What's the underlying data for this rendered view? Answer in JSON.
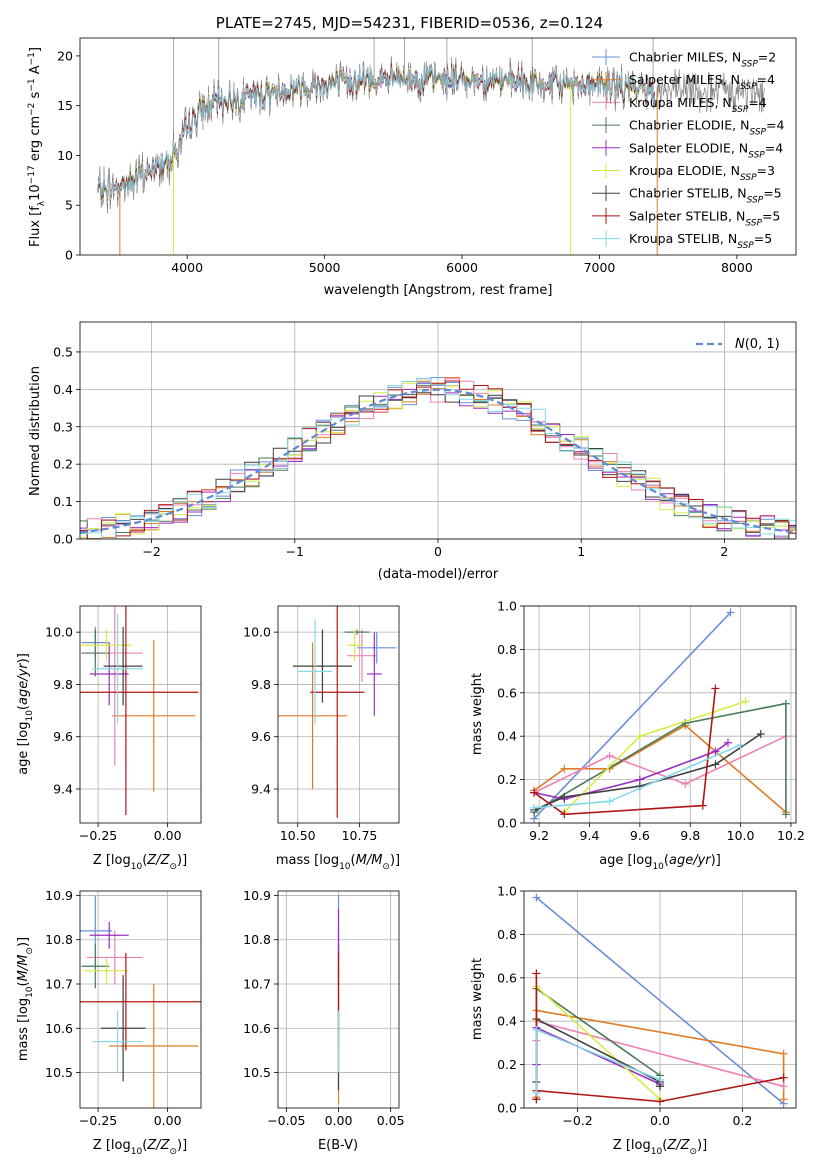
{
  "series_styles": {
    "Chabrier MILES": {
      "color": "#6a8fd8"
    },
    "Salpeter MILES": {
      "color": "#e07b25"
    },
    "Kroupa MILES": {
      "color": "#ee82b4"
    },
    "Chabrier ELODIE": {
      "color": "#4a7a5a"
    },
    "Salpeter ELODIE": {
      "color": "#9a2ec2"
    },
    "Kroupa ELODIE": {
      "color": "#d7ea47"
    },
    "Chabrier STELIB": {
      "color": "#404040"
    },
    "Salpeter STELIB": {
      "color": "#b01616"
    },
    "Kroupa STELIB": {
      "color": "#86d8e6"
    }
  },
  "chart_data": [
    {
      "id": "spectrum",
      "type": "line",
      "title": "PLATE=2745, MJD=54231, FIBERID=0536, z=0.124",
      "xlabel": "wavelength [Angstrom, rest frame]",
      "ylabel": "Flux [f_λ 10^-17 erg cm^-2 s^-1 A^-1]",
      "xlim": [
        3220,
        8430
      ],
      "ylim": [
        0,
        21.8
      ],
      "xticks": [
        4000,
        5000,
        6000,
        7000,
        8000
      ],
      "yticks": [
        0,
        5,
        10,
        15,
        20
      ],
      "grid": false,
      "legend_position": "right",
      "legend": [
        "Chabrier MILES, N_SSP=2",
        "Salpeter MILES, N_SSP=4",
        "Kroupa MILES, N_SSP=4",
        "Chabrier ELODIE, N_SSP=4",
        "Salpeter ELODIE, N_SSP=4",
        "Kroupa ELODIE, N_SSP=3",
        "Chabrier STELIB, N_SSP=5",
        "Salpeter STELIB, N_SSP=5",
        "Kroupa STELIB, N_SSP=5"
      ],
      "data_continuum": {
        "x": [
          3350,
          3500,
          3650,
          3800,
          3950,
          4000,
          4100,
          4200,
          4400,
          4600,
          4800,
          5000,
          5200,
          5400,
          5600,
          5800,
          6000,
          6200,
          6400,
          6600,
          6800,
          7000,
          7200,
          7400,
          7600,
          7800,
          8000,
          8200
        ],
        "y": [
          6.5,
          6.8,
          7.8,
          9.0,
          10.8,
          12.8,
          14.5,
          15.3,
          15.8,
          16.3,
          16.8,
          17.2,
          17.5,
          17.6,
          17.7,
          17.6,
          17.7,
          17.6,
          17.3,
          17.0,
          17.2,
          17.1,
          16.8,
          16.6,
          16.5,
          16.5,
          16.3,
          16.2
        ]
      },
      "observed_range": [
        3350,
        8200
      ],
      "model_range": [
        3350,
        7400
      ],
      "dropouts": [
        {
          "x": 3510,
          "series": "Salpeter MILES"
        },
        {
          "x": 3900,
          "series": "Kroupa ELODIE"
        },
        {
          "x": 6790,
          "series": "Kroupa ELODIE"
        },
        {
          "x": 7420,
          "series": "Salpeter MILES"
        }
      ],
      "spikes": [
        3900,
        4230,
        5360,
        5580,
        5890,
        6510,
        7390
      ]
    },
    {
      "id": "residuals",
      "type": "step",
      "xlabel": "(data-model)/error",
      "ylabel": "Normed distribution",
      "xlim": [
        -2.5,
        2.5
      ],
      "ylim": [
        0,
        0.58
      ],
      "xticks": [
        -2,
        -1,
        0,
        1,
        2
      ],
      "yticks": [
        0.0,
        0.1,
        0.2,
        0.3,
        0.4,
        0.5
      ],
      "grid": true,
      "legend_position": "upper right",
      "gaussian_label": "N(0,1)",
      "bin_width": 0.1
    },
    {
      "id": "z_age",
      "type": "errorbar",
      "xlabel": "Z [log10(Z/Z☉)]",
      "ylabel": "age [log10(age/yr)]",
      "xlim": [
        -0.315,
        0.12
      ],
      "ylim": [
        9.27,
        10.1
      ],
      "xticks": [
        -0.25,
        0.0
      ],
      "yticks": [
        9.4,
        9.6,
        9.8,
        10.0
      ],
      "grid": true,
      "points": [
        {
          "series": "Chabrier MILES",
          "x": -0.26,
          "xerr": 0.05,
          "y": 9.96,
          "yerr": 0.06
        },
        {
          "series": "Salpeter MILES",
          "x": -0.05,
          "xerr": 0.15,
          "y": 9.68,
          "yerr": 0.29
        },
        {
          "series": "Kroupa MILES",
          "x": -0.19,
          "xerr": 0.1,
          "y": 9.92,
          "yerr": 0.43
        },
        {
          "series": "Chabrier ELODIE",
          "x": -0.26,
          "xerr": 0.05,
          "y": 9.92,
          "yerr": 0.09
        },
        {
          "series": "Salpeter ELODIE",
          "x": -0.21,
          "xerr": 0.07,
          "y": 9.84,
          "yerr": 0.12
        },
        {
          "series": "Kroupa ELODIE",
          "x": -0.22,
          "xerr": 0.09,
          "y": 9.95,
          "yerr": 0.06
        },
        {
          "series": "Chabrier STELIB",
          "x": -0.16,
          "xerr": 0.07,
          "y": 9.87,
          "yerr": 0.15
        },
        {
          "series": "Salpeter STELIB",
          "x": -0.15,
          "xerr": 0.26,
          "y": 9.77,
          "yerr": 0.47
        },
        {
          "series": "Kroupa STELIB",
          "x": -0.18,
          "xerr": 0.09,
          "y": 9.86,
          "yerr": 0.21
        }
      ]
    },
    {
      "id": "mass_age",
      "type": "errorbar",
      "xlabel": "mass [log10(M/M☉)]",
      "ylabel": "",
      "xlim": [
        10.42,
        10.91
      ],
      "ylim": [
        9.27,
        10.1
      ],
      "xticks": [
        10.5,
        10.75
      ],
      "yticks": [
        9.4,
        9.6,
        9.8,
        10.0
      ],
      "grid": true,
      "points": [
        {
          "series": "Chabrier MILES",
          "x": 10.82,
          "xerr": 0.08,
          "y": 9.94,
          "yerr": 0.06
        },
        {
          "series": "Salpeter MILES",
          "x": 10.56,
          "xerr": 0.14,
          "y": 9.68,
          "yerr": 0.28
        },
        {
          "series": "Kroupa MILES",
          "x": 10.76,
          "xerr": 0.06,
          "y": 9.91,
          "yerr": 0.1
        },
        {
          "series": "Chabrier ELODIE",
          "x": 10.74,
          "xerr": 0.05,
          "y": 10.0,
          "yerr": 0.01
        },
        {
          "series": "Salpeter ELODIE",
          "x": 10.81,
          "xerr": 0.03,
          "y": 9.84,
          "yerr": 0.16
        },
        {
          "series": "Kroupa ELODIE",
          "x": 10.73,
          "xerr": 0.03,
          "y": 9.95,
          "yerr": 0.06
        },
        {
          "series": "Chabrier STELIB",
          "x": 10.6,
          "xerr": 0.12,
          "y": 9.87,
          "yerr": 0.14
        },
        {
          "series": "Salpeter STELIB",
          "x": 10.66,
          "xerr": 0.11,
          "y": 9.77,
          "yerr": 0.48
        },
        {
          "series": "Kroupa STELIB",
          "x": 10.57,
          "xerr": 0.07,
          "y": 9.85,
          "yerr": 0.2
        }
      ]
    },
    {
      "id": "age_weight",
      "type": "line",
      "xlabel": "age [log10(age/yr)]",
      "ylabel": "mass weight",
      "xlim": [
        9.14,
        10.22
      ],
      "ylim": [
        0,
        1.0
      ],
      "xticks": [
        9.2,
        9.4,
        9.6,
        9.8,
        10.0,
        10.2
      ],
      "yticks": [
        0.0,
        0.2,
        0.4,
        0.6,
        0.8,
        1.0
      ],
      "grid": true,
      "series": [
        {
          "name": "Chabrier MILES",
          "x": [
            9.18,
            9.96
          ],
          "y": [
            0.02,
            0.97
          ]
        },
        {
          "name": "Salpeter MILES",
          "x": [
            9.18,
            9.3,
            9.48,
            9.78,
            10.18
          ],
          "y": [
            0.15,
            0.25,
            0.25,
            0.45,
            0.05
          ]
        },
        {
          "name": "Kroupa MILES",
          "x": [
            9.18,
            9.48,
            9.78,
            10.18
          ],
          "y": [
            0.14,
            0.31,
            0.18,
            0.4
          ]
        },
        {
          "name": "Chabrier ELODIE",
          "x": [
            9.18,
            9.78,
            10.18,
            10.18
          ],
          "y": [
            0.05,
            0.46,
            0.55,
            0.04
          ]
        },
        {
          "name": "Salpeter ELODIE",
          "x": [
            9.18,
            9.3,
            9.6,
            9.9,
            9.95
          ],
          "y": [
            0.14,
            0.11,
            0.2,
            0.33,
            0.37
          ]
        },
        {
          "name": "Kroupa ELODIE",
          "x": [
            9.3,
            9.6,
            10.02
          ],
          "y": [
            0.05,
            0.4,
            0.56
          ]
        },
        {
          "name": "Chabrier STELIB",
          "x": [
            9.18,
            9.3,
            9.6,
            9.9,
            10.08
          ],
          "y": [
            0.06,
            0.12,
            0.17,
            0.27,
            0.41
          ]
        },
        {
          "name": "Salpeter STELIB",
          "x": [
            9.18,
            9.3,
            9.85,
            9.9
          ],
          "y": [
            0.14,
            0.04,
            0.08,
            0.62
          ]
        },
        {
          "name": "Kroupa STELIB",
          "x": [
            9.18,
            9.48,
            10.0
          ],
          "y": [
            0.07,
            0.1,
            0.36
          ]
        }
      ]
    },
    {
      "id": "z_mass",
      "type": "errorbar",
      "xlabel": "Z [log10(Z/Z☉)]",
      "ylabel": "mass [log10(M/M☉)]",
      "xlim": [
        -0.315,
        0.12
      ],
      "ylim": [
        10.42,
        10.91
      ],
      "xticks": [
        -0.25,
        0.0
      ],
      "yticks": [
        10.5,
        10.6,
        10.7,
        10.8,
        10.9
      ],
      "grid": true,
      "points": [
        {
          "series": "Chabrier MILES",
          "x": -0.26,
          "xerr": 0.06,
          "y": 10.82,
          "yerr": 0.08
        },
        {
          "series": "Salpeter MILES",
          "x": -0.05,
          "xerr": 0.16,
          "y": 10.56,
          "yerr": 0.14
        },
        {
          "series": "Kroupa MILES",
          "x": -0.19,
          "xerr": 0.1,
          "y": 10.76,
          "yerr": 0.06
        },
        {
          "series": "Chabrier ELODIE",
          "x": -0.26,
          "xerr": 0.05,
          "y": 10.74,
          "yerr": 0.05
        },
        {
          "series": "Salpeter ELODIE",
          "x": -0.21,
          "xerr": 0.07,
          "y": 10.81,
          "yerr": 0.03
        },
        {
          "series": "Kroupa ELODIE",
          "x": -0.22,
          "xerr": 0.08,
          "y": 10.73,
          "yerr": 0.03
        },
        {
          "series": "Chabrier STELIB",
          "x": -0.16,
          "xerr": 0.08,
          "y": 10.6,
          "yerr": 0.12
        },
        {
          "series": "Salpeter STELIB",
          "x": -0.15,
          "xerr": 0.27,
          "y": 10.66,
          "yerr": 0.11
        },
        {
          "series": "Kroupa STELIB",
          "x": -0.18,
          "xerr": 0.09,
          "y": 10.57,
          "yerr": 0.07
        }
      ]
    },
    {
      "id": "ebv_mass",
      "type": "errorbar",
      "xlabel": "E(B-V)",
      "ylabel": "",
      "xlim": [
        -0.058,
        0.058
      ],
      "ylim": [
        10.42,
        10.91
      ],
      "xticks": [
        -0.05,
        0.0,
        0.05
      ],
      "yticks": [
        10.5,
        10.6,
        10.7,
        10.8,
        10.9
      ],
      "grid": true,
      "points": [
        {
          "series": "Chabrier MILES",
          "x": 0.0,
          "xerr": 0,
          "y": 10.82,
          "yerr": 0.08
        },
        {
          "series": "Salpeter MILES",
          "x": 0.0,
          "xerr": 0,
          "y": 10.56,
          "yerr": 0.13
        },
        {
          "series": "Kroupa MILES",
          "x": 0.0,
          "xerr": 0,
          "y": 10.76,
          "yerr": 0.06
        },
        {
          "series": "Chabrier ELODIE",
          "x": 0.0,
          "xerr": 0,
          "y": 10.74,
          "yerr": 0.05
        },
        {
          "series": "Salpeter ELODIE",
          "x": 0.0,
          "xerr": 0,
          "y": 10.81,
          "yerr": 0.06
        },
        {
          "series": "Kroupa ELODIE",
          "x": 0.0,
          "xerr": 0,
          "y": 10.73,
          "yerr": 0.03
        },
        {
          "series": "Chabrier STELIB",
          "x": 0.0,
          "xerr": 0,
          "y": 10.6,
          "yerr": 0.14
        },
        {
          "series": "Salpeter STELIB",
          "x": 0.0,
          "xerr": 0,
          "y": 10.66,
          "yerr": 0.11
        },
        {
          "series": "Kroupa STELIB",
          "x": 0.0,
          "xerr": 0,
          "y": 10.57,
          "yerr": 0.07
        }
      ]
    },
    {
      "id": "z_weight",
      "type": "line",
      "xlabel": "Z [log10(Z/Z☉)]",
      "ylabel": "mass weight",
      "xlim": [
        -0.33,
        0.33
      ],
      "ylim": [
        0,
        1.0
      ],
      "xticks": [
        -0.2,
        0.0,
        0.2
      ],
      "yticks": [
        0.0,
        0.2,
        0.4,
        0.6,
        0.8,
        1.0
      ],
      "grid": true,
      "series": [
        {
          "name": "Chabrier MILES",
          "x": [
            -0.3,
            0.3
          ],
          "y": [
            0.97,
            0.02
          ]
        },
        {
          "name": "Salpeter MILES",
          "x": [
            -0.3,
            -0.3,
            0.3,
            0.3
          ],
          "y": [
            0.05,
            0.45,
            0.25,
            0.04
          ]
        },
        {
          "name": "Kroupa MILES",
          "x": [
            -0.3,
            -0.3,
            0.3
          ],
          "y": [
            0.31,
            0.4,
            0.1
          ]
        },
        {
          "name": "Chabrier ELODIE",
          "x": [
            -0.3,
            -0.3,
            0.0,
            0.0
          ],
          "y": [
            0.04,
            0.55,
            0.15,
            0.1
          ]
        },
        {
          "name": "Salpeter ELODIE",
          "x": [
            -0.3,
            -0.3,
            0.0
          ],
          "y": [
            0.2,
            0.37,
            0.11
          ]
        },
        {
          "name": "Kroupa ELODIE",
          "x": [
            -0.3,
            -0.3,
            0.0
          ],
          "y": [
            0.4,
            0.56,
            0.04
          ]
        },
        {
          "name": "Chabrier STELIB",
          "x": [
            -0.3,
            -0.3,
            0.0,
            0.0
          ],
          "y": [
            0.12,
            0.41,
            0.12,
            0.1
          ]
        },
        {
          "name": "Salpeter STELIB",
          "x": [
            -0.3,
            -0.3,
            -0.3,
            0.0,
            0.3
          ],
          "y": [
            0.62,
            0.04,
            0.08,
            0.03,
            0.14
          ]
        },
        {
          "name": "Kroupa STELIB",
          "x": [
            -0.3,
            -0.3,
            0.0
          ],
          "y": [
            0.07,
            0.36,
            0.13
          ]
        }
      ]
    }
  ]
}
